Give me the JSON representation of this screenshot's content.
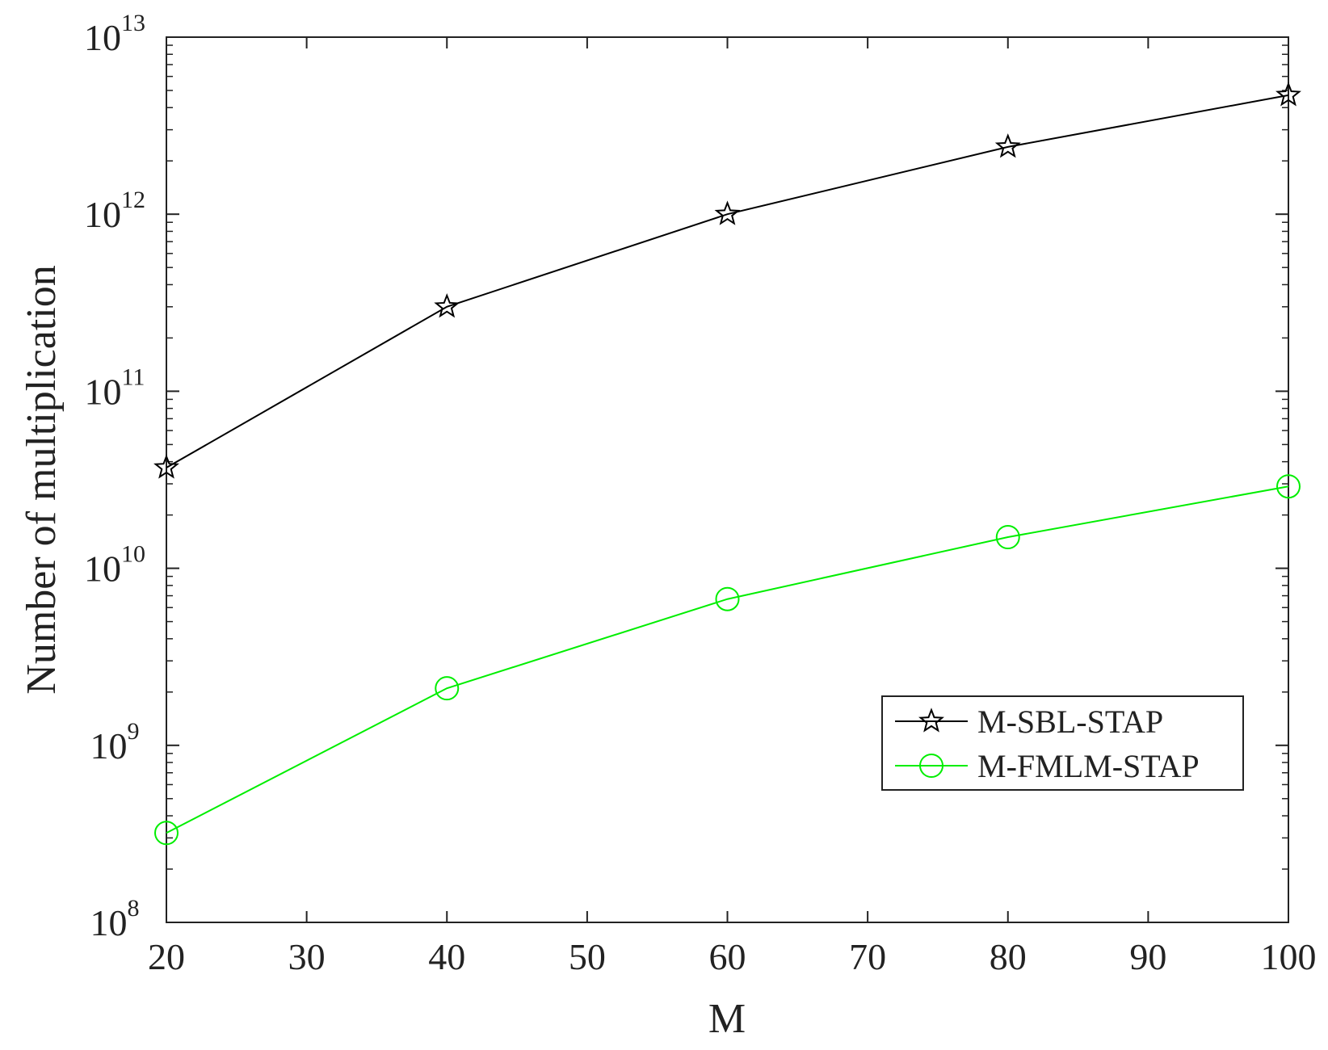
{
  "chart_data": {
    "type": "line",
    "xlabel": "M",
    "ylabel": "Number of multiplication",
    "xlim": [
      20,
      100
    ],
    "ylim": [
      100000000,
      10000000000000
    ],
    "yscale": "log",
    "grid": false,
    "legend_position": "lower-right",
    "x_ticks": [
      "20",
      "30",
      "40",
      "50",
      "60",
      "70",
      "80",
      "90",
      "100"
    ],
    "y_ticks": [
      {
        "base": "10",
        "exp": "8"
      },
      {
        "base": "10",
        "exp": "9"
      },
      {
        "base": "10",
        "exp": "10"
      },
      {
        "base": "10",
        "exp": "11"
      },
      {
        "base": "10",
        "exp": "12"
      },
      {
        "base": "10",
        "exp": "13"
      }
    ],
    "x": [
      20,
      40,
      60,
      80,
      100
    ],
    "series": [
      {
        "name": "M-SBL-STAP",
        "color": "#000000",
        "marker": "star",
        "values": [
          37000000000,
          300000000000,
          1000000000000,
          2400000000000,
          4700000000000
        ]
      },
      {
        "name": "M-FMLM-STAP",
        "color": "#00ee00",
        "marker": "circle",
        "values": [
          320000000,
          2100000000,
          6700000000,
          15000000000,
          29000000000
        ]
      }
    ]
  }
}
